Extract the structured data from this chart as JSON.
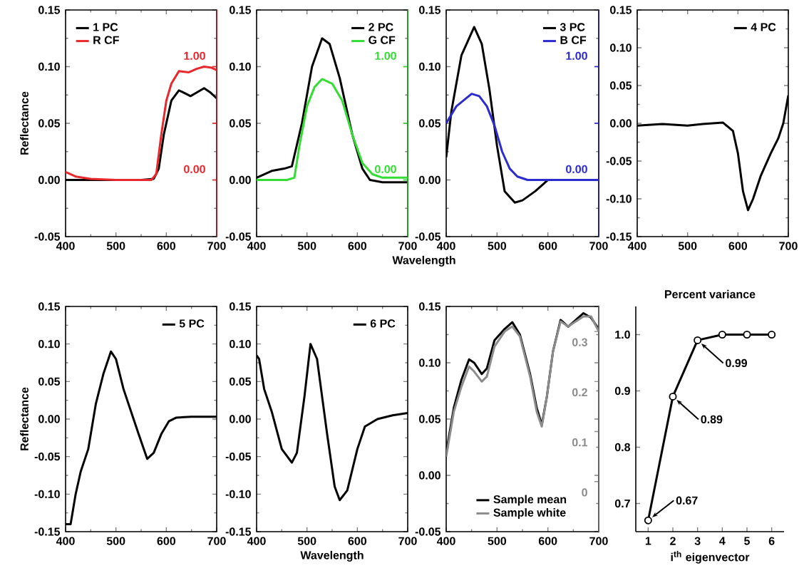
{
  "chart_data": [
    {
      "type": "line",
      "ylabel": "Reflectance",
      "xlim": [
        400,
        700
      ],
      "xticks": [
        400,
        500,
        600,
        700
      ],
      "ylim": [
        -0.05,
        0.15
      ],
      "yticks": [
        -0.05,
        {
          "value": 0,
          "label": "0.00"
        },
        0.05,
        {
          "value": 0.1,
          "label": "0.10"
        },
        0.15
      ],
      "y2lim": [
        -0.5,
        1.5
      ],
      "y2ticks": [
        {
          "value": 0,
          "label": "0.00"
        },
        {
          "value": 0.5,
          "label": null
        },
        {
          "value": 1,
          "label": "1.00"
        }
      ],
      "legend": "top left",
      "series": [
        {
          "name": "1 PC",
          "color": "#000000",
          "x": [
            400,
            450,
            500,
            550,
            575,
            585,
            595,
            610,
            625,
            635,
            648,
            660,
            675,
            688,
            700
          ],
          "values": [
            0.0,
            0.0,
            0.0,
            0.0,
            0.001,
            0.01,
            0.04,
            0.07,
            0.079,
            0.077,
            0.074,
            0.077,
            0.081,
            0.077,
            0.072
          ]
        },
        {
          "name": "R CF",
          "color": "#e8282d",
          "axis": "y2",
          "x": [
            400,
            420,
            450,
            500,
            570,
            580,
            590,
            600,
            610,
            625,
            645,
            660,
            675,
            690,
            700
          ],
          "values": [
            0.07,
            0.03,
            0.01,
            0.0,
            0.0,
            0.05,
            0.4,
            0.7,
            0.85,
            0.96,
            0.95,
            0.98,
            1.0,
            0.99,
            0.97
          ]
        }
      ]
    },
    {
      "type": "line",
      "xlim": [
        400,
        700
      ],
      "xticks": [
        400,
        500,
        600,
        700
      ],
      "ylim": [
        -0.05,
        0.15
      ],
      "yticks": [
        -0.05,
        {
          "value": 0,
          "label": "0.00"
        },
        0.05,
        {
          "value": 0.1,
          "label": "0.10"
        },
        0.15
      ],
      "y2lim": [
        -0.5,
        1.5
      ],
      "y2ticks": [
        {
          "value": 0,
          "label": "0.00"
        },
        {
          "value": 0.5,
          "label": null
        },
        {
          "value": 1,
          "label": "1.00"
        }
      ],
      "legend": "top right",
      "series": [
        {
          "name": "2 PC",
          "color": "#000000",
          "x": [
            400,
            430,
            455,
            470,
            490,
            510,
            530,
            545,
            565,
            590,
            610,
            625,
            650,
            700
          ],
          "values": [
            0.002,
            0.008,
            0.01,
            0.012,
            0.05,
            0.1,
            0.125,
            0.12,
            0.09,
            0.04,
            0.01,
            0.0,
            -0.002,
            -0.002
          ]
        },
        {
          "name": "G CF",
          "color": "#33dd33",
          "axis": "y2",
          "x": [
            400,
            460,
            475,
            485,
            500,
            515,
            530,
            550,
            570,
            590,
            610,
            630,
            650,
            700
          ],
          "values": [
            0.0,
            0.0,
            0.02,
            0.3,
            0.65,
            0.82,
            0.89,
            0.85,
            0.7,
            0.4,
            0.15,
            0.05,
            0.02,
            0.02
          ]
        }
      ]
    },
    {
      "type": "line",
      "xlabel": "Wavelength",
      "xlim": [
        400,
        700
      ],
      "xticks": [
        400,
        500,
        600,
        700
      ],
      "ylim": [
        -0.05,
        0.15
      ],
      "yticks": [
        -0.05,
        {
          "value": 0,
          "label": "0.00"
        },
        0.05,
        {
          "value": 0.1,
          "label": "0.10"
        },
        0.15
      ],
      "y2lim": [
        -0.5,
        1.5
      ],
      "y2ticks": [
        {
          "value": 0,
          "label": "0.00"
        },
        {
          "value": 0.5,
          "label": null
        },
        {
          "value": 1,
          "label": "1.00"
        }
      ],
      "legend": "top right",
      "series": [
        {
          "name": "3 PC",
          "color": "#000000",
          "x": [
            400,
            410,
            430,
            455,
            470,
            485,
            500,
            515,
            535,
            550,
            575,
            600,
            650,
            700
          ],
          "values": [
            0.02,
            0.06,
            0.11,
            0.135,
            0.12,
            0.08,
            0.03,
            -0.01,
            -0.02,
            -0.018,
            -0.01,
            0.0,
            0.0,
            0.0
          ]
        },
        {
          "name": "B CF",
          "color": "#2b2bd0",
          "axis": "y2",
          "x": [
            400,
            420,
            450,
            465,
            480,
            495,
            510,
            525,
            540,
            560,
            700
          ],
          "values": [
            0.5,
            0.65,
            0.76,
            0.74,
            0.65,
            0.48,
            0.25,
            0.1,
            0.03,
            0.0,
            0.0
          ]
        }
      ]
    },
    {
      "type": "line",
      "xlim": [
        400,
        700
      ],
      "xticks": [
        400,
        500,
        600,
        700
      ],
      "ylim": [
        -0.15,
        0.15
      ],
      "yticks": [
        -0.15,
        {
          "value": -0.1,
          "label": "-0.10"
        },
        -0.05,
        {
          "value": 0,
          "label": "0.00"
        },
        0.05,
        {
          "value": 0.1,
          "label": "0.10"
        },
        0.15
      ],
      "legend": "top right",
      "series": [
        {
          "name": "4 PC",
          "color": "#000000",
          "x": [
            400,
            450,
            500,
            530,
            570,
            590,
            600,
            610,
            620,
            630,
            645,
            665,
            680,
            690,
            700
          ],
          "values": [
            -0.003,
            -0.001,
            -0.003,
            -0.001,
            0.001,
            -0.01,
            -0.04,
            -0.09,
            -0.115,
            -0.1,
            -0.07,
            -0.04,
            -0.02,
            0.0,
            0.037
          ]
        }
      ]
    },
    {
      "type": "line",
      "ylabel": "Reflectance",
      "xlim": [
        400,
        700
      ],
      "xticks": [
        400,
        500,
        600,
        700
      ],
      "ylim": [
        -0.15,
        0.15
      ],
      "yticks": [
        -0.15,
        {
          "value": -0.1,
          "label": "-0.10"
        },
        -0.05,
        {
          "value": 0,
          "label": "0.00"
        },
        0.05,
        {
          "value": 0.1,
          "label": "0.10"
        },
        0.15
      ],
      "legend": "top right",
      "series": [
        {
          "name": "5 PC",
          "color": "#000000",
          "x": [
            400,
            410,
            420,
            430,
            445,
            460,
            475,
            490,
            500,
            515,
            530,
            545,
            562,
            575,
            590,
            605,
            620,
            650,
            700
          ],
          "values": [
            -0.14,
            -0.14,
            -0.1,
            -0.07,
            -0.04,
            0.02,
            0.06,
            0.09,
            0.08,
            0.04,
            0.01,
            -0.02,
            -0.053,
            -0.045,
            -0.02,
            -0.003,
            0.002,
            0.003,
            0.003
          ]
        }
      ]
    },
    {
      "type": "line",
      "xlabel": "Wavelength",
      "xlim": [
        400,
        700
      ],
      "xticks": [
        400,
        500,
        600,
        700
      ],
      "ylim": [
        -0.15,
        0.15
      ],
      "yticks": [
        -0.15,
        {
          "value": -0.1,
          "label": "-0.10"
        },
        -0.05,
        {
          "value": 0,
          "label": "0.00"
        },
        0.05,
        {
          "value": 0.1,
          "label": "0.10"
        },
        0.15
      ],
      "legend": "top right",
      "series": [
        {
          "name": "6 PC",
          "color": "#000000",
          "x": [
            400,
            405,
            415,
            430,
            450,
            470,
            480,
            495,
            507,
            520,
            540,
            555,
            565,
            580,
            600,
            615,
            640,
            670,
            700
          ],
          "values": [
            0.085,
            0.08,
            0.04,
            0.01,
            -0.04,
            -0.058,
            -0.045,
            0.03,
            0.1,
            0.08,
            -0.02,
            -0.09,
            -0.108,
            -0.095,
            -0.04,
            -0.01,
            0.0,
            0.005,
            0.008
          ]
        }
      ]
    },
    {
      "type": "line",
      "xlim": [
        400,
        700
      ],
      "xticks": [
        400,
        500,
        600,
        700
      ],
      "ylim": [
        -0.05,
        0.15
      ],
      "yticks": [
        -0.05,
        {
          "value": 0,
          "label": "0.00"
        },
        0.05,
        {
          "value": 0.1,
          "label": "0.10"
        },
        0.15
      ],
      "y2lim": [
        -0.1,
        0.35
      ],
      "y2ticks": [
        0,
        0.1,
        0.2,
        0.3
      ],
      "legend": "bottom",
      "series": [
        {
          "name": "Sample mean",
          "color": "#000000",
          "x": [
            400,
            415,
            430,
            445,
            455,
            470,
            480,
            495,
            515,
            530,
            545,
            565,
            578,
            588,
            598,
            610,
            625,
            640,
            655,
            670,
            685,
            700
          ],
          "values": [
            0.02,
            0.06,
            0.085,
            0.103,
            0.1,
            0.09,
            0.095,
            0.12,
            0.13,
            0.136,
            0.125,
            0.09,
            0.06,
            0.045,
            0.07,
            0.11,
            0.138,
            0.132,
            0.138,
            0.144,
            0.14,
            0.13
          ]
        },
        {
          "name": "Sample white",
          "color": "#8c8c8c",
          "axis": "y2",
          "x": [
            400,
            415,
            430,
            445,
            455,
            470,
            480,
            495,
            515,
            530,
            545,
            565,
            578,
            588,
            598,
            610,
            625,
            640,
            655,
            670,
            685,
            700
          ],
          "values": [
            0.05,
            0.14,
            0.19,
            0.23,
            0.22,
            0.2,
            0.21,
            0.27,
            0.3,
            0.31,
            0.29,
            0.21,
            0.14,
            0.11,
            0.17,
            0.26,
            0.32,
            0.31,
            0.32,
            0.33,
            0.33,
            0.3
          ]
        }
      ]
    },
    {
      "type": "line",
      "title": "Percent variance",
      "xlabel": "i$^{th}$ eigenvector",
      "xlim": [
        0.5,
        6.5
      ],
      "xticks": [
        1,
        2,
        3,
        4,
        5,
        6
      ],
      "ylim": [
        0.65,
        1.05
      ],
      "yticks": [
        0.7,
        0.8,
        0.9,
        {
          "value": 1.0,
          "label": "1.0"
        }
      ],
      "marker": "circle",
      "series": [
        {
          "color": "#000000",
          "x": [
            1,
            2,
            3,
            4,
            5,
            6
          ],
          "values": [
            0.67,
            0.89,
            0.99,
            1.0,
            1.0,
            1.0
          ],
          "value_labels": [
            "0.67",
            "0.89",
            "0.99",
            null,
            null,
            null
          ]
        }
      ]
    }
  ]
}
